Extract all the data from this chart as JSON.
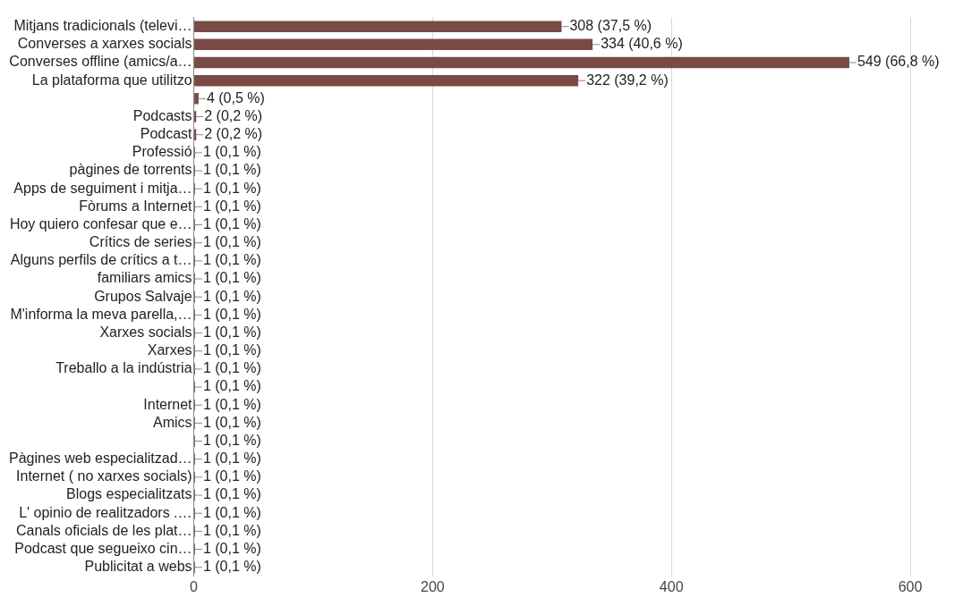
{
  "chart_data": {
    "type": "bar",
    "orientation": "horizontal",
    "categories": [
      "Mitjans tradicionals (televi…",
      "Converses a xarxes socials",
      "Converses offline (amics/a…",
      "La plataforma que utilitzo",
      null,
      "Podcasts",
      "Podcast",
      "Professió",
      "pàgines de torrents",
      "Apps de seguiment i mitja…",
      "Fòrums a Internet",
      "Hoy quiero confesar que e…",
      "Crítics de series",
      "Alguns perfils de crítics a t…",
      "familiars amics",
      "Grupos Salvaje",
      "M'informa la meva parella,…",
      "Xarxes socials",
      "Xarxes",
      "Treballo a la indústria",
      null,
      "Internet",
      "Amics",
      null,
      "Pàgines web especialitzad…",
      "Internet ( no xarxes socials)",
      "Blogs especialitzats",
      "L' opinio de realitzadors .…",
      "Canals oficials de les plat…",
      "Podcast que segueixo cin…",
      "Publicitat a webs"
    ],
    "values": [
      308,
      334,
      549,
      322,
      4,
      2,
      2,
      1,
      1,
      1,
      1,
      1,
      1,
      1,
      1,
      1,
      1,
      1,
      1,
      1,
      1,
      1,
      1,
      1,
      1,
      1,
      1,
      1,
      1,
      1,
      1
    ],
    "value_labels": [
      "308 (37,5 %)",
      "334 (40,6 %)",
      "549 (66,8 %)",
      "322 (39,2 %)",
      "4 (0,5 %)",
      "2 (0,2 %)",
      "2 (0,2 %)",
      "1 (0,1 %)",
      "1 (0,1 %)",
      "1 (0,1 %)",
      "1 (0,1 %)",
      "1 (0,1 %)",
      "1 (0,1 %)",
      "1 (0,1 %)",
      "1 (0,1 %)",
      "1 (0,1 %)",
      "1 (0,1 %)",
      "1 (0,1 %)",
      "1 (0,1 %)",
      "1 (0,1 %)",
      "1 (0,1 %)",
      "1 (0,1 %)",
      "1 (0,1 %)",
      "1 (0,1 %)",
      "1 (0,1 %)",
      "1 (0,1 %)",
      "1 (0,1 %)",
      "1 (0,1 %)",
      "1 (0,1 %)",
      "1 (0,1 %)",
      "1 (0,1 %)"
    ],
    "color": "#7a4a45",
    "xlim": [
      0,
      600
    ],
    "xticks": [
      0,
      200,
      400,
      600
    ],
    "grid": "x",
    "legend": false
  }
}
